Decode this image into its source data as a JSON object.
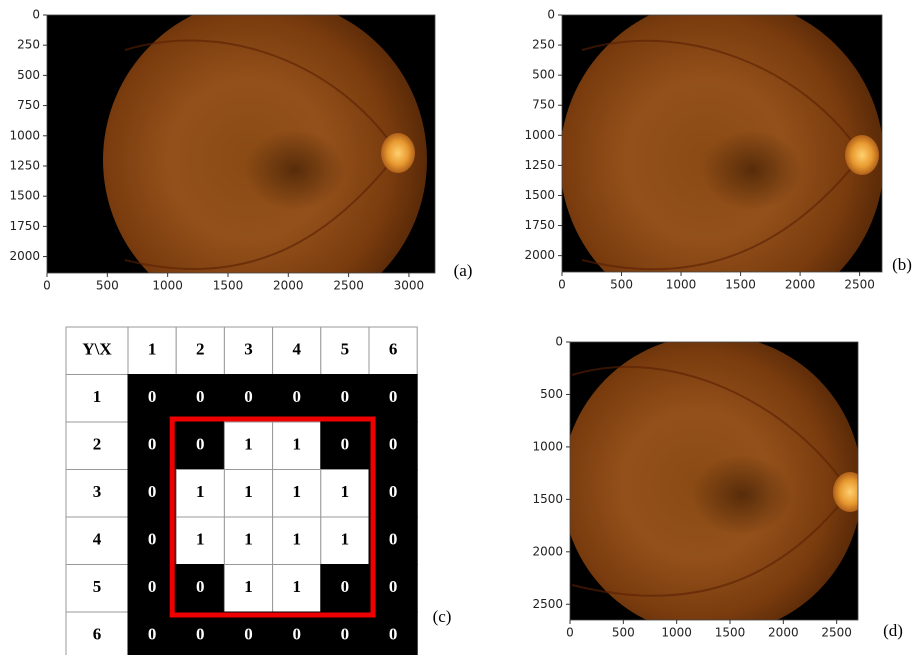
{
  "panels": [
    {
      "label": "(a)",
      "xlim": [
        0,
        3216
      ],
      "ylim": [
        2136,
        0
      ],
      "xticks": [
        0,
        500,
        1000,
        1500,
        2000,
        2500,
        3000
      ],
      "yticks": [
        0,
        250,
        500,
        750,
        1000,
        1250,
        1500,
        1750,
        2000
      ]
    },
    {
      "label": "(b)",
      "xlim": [
        0,
        2688
      ],
      "ylim": [
        2136,
        0
      ],
      "xticks": [
        0,
        500,
        1000,
        1500,
        2000,
        2500
      ],
      "yticks": [
        0,
        250,
        500,
        750,
        1000,
        1250,
        1500,
        1750,
        2000
      ]
    },
    {
      "label": "(d)",
      "xlim": [
        0,
        2700
      ],
      "ylim": [
        2650,
        0
      ],
      "xticks": [
        0,
        500,
        1000,
        1500,
        2000,
        2500
      ],
      "yticks": [
        0,
        500,
        1000,
        1500,
        2000,
        2500
      ]
    }
  ],
  "table": {
    "label": "(c)",
    "header": [
      "Y\\X",
      "1",
      "2",
      "3",
      "4",
      "5",
      "6"
    ],
    "rows": [
      {
        "label": "1",
        "values": [
          0,
          0,
          0,
          0,
          0,
          0
        ]
      },
      {
        "label": "2",
        "values": [
          0,
          0,
          1,
          1,
          0,
          0
        ]
      },
      {
        "label": "3",
        "values": [
          0,
          1,
          1,
          1,
          1,
          0
        ]
      },
      {
        "label": "4",
        "values": [
          0,
          1,
          1,
          1,
          1,
          0
        ]
      },
      {
        "label": "5",
        "values": [
          0,
          0,
          1,
          1,
          0,
          0
        ]
      },
      {
        "label": "6",
        "values": [
          0,
          0,
          0,
          0,
          0,
          0
        ]
      }
    ]
  }
}
